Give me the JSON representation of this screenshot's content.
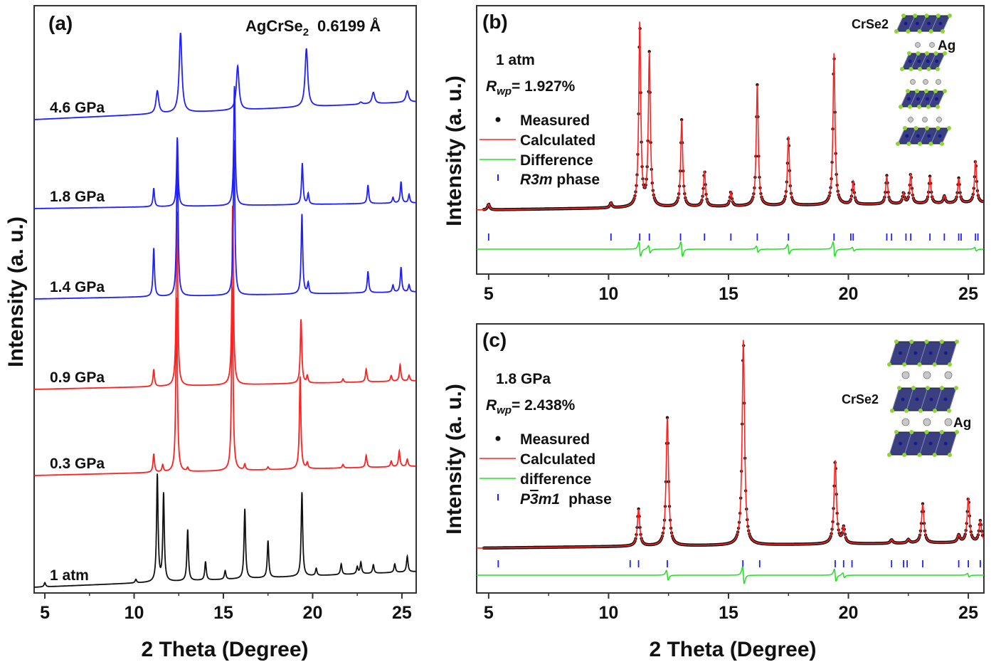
{
  "colors": {
    "blue": "#1f1fff",
    "red": "#ff2020",
    "green": "#20e020",
    "black": "#111111",
    "layer": "#3a3f80",
    "se": "#8fd430",
    "ag": "#c8c8c8"
  },
  "panel_a": {
    "tag": "(a)",
    "title_formula": "AgCrSe",
    "title_sub": "2",
    "title_wavelength": "0.6199 Å",
    "xlabel": "2 Theta (Degree)",
    "ylabel": "Intensity (a. u.)"
  },
  "panel_b": {
    "tag": "(b)",
    "condition": "1 atm",
    "rwp_r": "R",
    "rwp_sub": "wp",
    "rwp_value": "= 1.927%",
    "legend": {
      "measured": "Measured",
      "calculated": "Calculated",
      "difference": "Difference",
      "phase_name": "R3m",
      "phase_suffix": " phase"
    },
    "inset": {
      "crse2": "CrSe2",
      "ag": "Ag"
    },
    "xlabel": "",
    "ylabel": "Intensity (a. u.)"
  },
  "panel_c": {
    "tag": "(c)",
    "condition": "1.8 GPa",
    "rwp_r": "R",
    "rwp_sub": "wp",
    "rwp_value": "= 2.438%",
    "legend": {
      "measured": "Measured",
      "calculated": "Calculated",
      "difference": "difference",
      "phase_p": "P",
      "phase_bar": "3",
      "phase_m1": "m1",
      "phase_suffix": "phase"
    },
    "inset": {
      "crse2": "CrSe2",
      "ag": "Ag"
    },
    "xlabel": "2 Theta (Degree)",
    "ylabel": "Intensity (a. u.)"
  },
  "chart_data": [
    {
      "panel": "a",
      "type": "line",
      "title": "AgCrSe2 0.6199 Å",
      "xlabel": "2 Theta (Degree)",
      "ylabel": "Intensity (a. u.)",
      "xlim": [
        4.4,
        25.8
      ],
      "ylim": [
        0,
        825
      ],
      "xticks": [
        5,
        10,
        15,
        20,
        25
      ],
      "grid": false,
      "patterns": [
        {
          "label": "1 atm",
          "color": "black",
          "baseline": [
            8,
            30
          ],
          "width": 0.05,
          "peaks": [
            [
              5.0,
              6
            ],
            [
              10.1,
              5
            ],
            [
              11.3,
              150
            ],
            [
              11.65,
              123
            ],
            [
              13.0,
              72
            ],
            [
              14.0,
              26
            ],
            [
              15.1,
              12
            ],
            [
              16.2,
              98
            ],
            [
              17.5,
              52
            ],
            [
              19.4,
              118
            ],
            [
              20.2,
              10
            ],
            [
              21.6,
              15
            ],
            [
              22.5,
              10
            ],
            [
              22.7,
              16
            ],
            [
              23.4,
              12
            ],
            [
              24.6,
              12
            ],
            [
              25.3,
              22
            ]
          ]
        },
        {
          "label": "0.3 GPa",
          "color": "red",
          "baseline": [
            165,
            178
          ],
          "width": 0.05,
          "peaks": [
            [
              11.1,
              26
            ],
            [
              11.6,
              10
            ],
            [
              12.38,
              245
            ],
            [
              13.0,
              5
            ],
            [
              15.5,
              258
            ],
            [
              16.2,
              8
            ],
            [
              17.5,
              4
            ],
            [
              19.3,
              130
            ],
            [
              19.7,
              8
            ],
            [
              21.7,
              5
            ],
            [
              23.0,
              17
            ],
            [
              24.4,
              8
            ],
            [
              24.85,
              22
            ],
            [
              25.3,
              10
            ]
          ]
        },
        {
          "label": "0.9 GPa",
          "color": "red",
          "baseline": [
            286,
            298
          ],
          "width": 0.05,
          "peaks": [
            [
              11.1,
              24
            ],
            [
              12.4,
              245
            ],
            [
              15.52,
              252
            ],
            [
              19.35,
              90
            ],
            [
              19.7,
              10
            ],
            [
              21.7,
              5
            ],
            [
              23.0,
              18
            ],
            [
              24.4,
              8
            ],
            [
              24.9,
              23
            ],
            [
              25.4,
              8
            ]
          ]
        },
        {
          "label": "1.4 GPa",
          "color": "blue",
          "baseline": [
            413,
            423
          ],
          "width": 0.05,
          "peaks": [
            [
              11.1,
              68
            ],
            [
              12.42,
              208
            ],
            [
              15.6,
              218
            ],
            [
              19.4,
              112
            ],
            [
              19.75,
              15
            ],
            [
              23.1,
              30
            ],
            [
              24.5,
              10
            ],
            [
              24.95,
              35
            ],
            [
              25.4,
              10
            ]
          ]
        },
        {
          "label": "1.8 GPa",
          "color": "blue",
          "baseline": [
            540,
            548
          ],
          "width": 0.05,
          "peaks": [
            [
              11.1,
              26
            ],
            [
              12.42,
              97
            ],
            [
              15.62,
              168
            ],
            [
              19.42,
              58
            ],
            [
              19.75,
              15
            ],
            [
              23.1,
              26
            ],
            [
              24.5,
              8
            ],
            [
              24.95,
              30
            ],
            [
              25.4,
              12
            ]
          ]
        },
        {
          "label": "4.6 GPa",
          "color": "blue",
          "baseline": [
            665,
            690
          ],
          "width": 0.09,
          "peaks": [
            [
              11.3,
              32
            ],
            [
              12.6,
              112
            ],
            [
              15.8,
              62
            ],
            [
              19.65,
              82
            ],
            [
              22.7,
              3
            ],
            [
              23.4,
              16
            ],
            [
              25.3,
              16
            ]
          ]
        }
      ]
    },
    {
      "panel": "b",
      "type": "line",
      "xlabel": "",
      "ylabel": "Intensity (a. u.)",
      "xlim": [
        4.5,
        25.65
      ],
      "ylim": [
        0,
        377
      ],
      "xticks": [
        5,
        10,
        15,
        20,
        25
      ],
      "legend": [
        "Measured",
        "Calculated",
        "Difference",
        "R3m phase"
      ],
      "legend_placement": "top-left",
      "profile": {
        "baseline": [
          90,
          100
        ],
        "width": 0.05,
        "peaks": [
          [
            5.0,
            8
          ],
          [
            10.1,
            7
          ],
          [
            11.3,
            258
          ],
          [
            11.7,
            215
          ],
          [
            13.05,
            122
          ],
          [
            14.0,
            50
          ],
          [
            15.1,
            20
          ],
          [
            16.2,
            170
          ],
          [
            17.5,
            97
          ],
          [
            19.4,
            213
          ],
          [
            20.2,
            32
          ],
          [
            21.6,
            40
          ],
          [
            22.3,
            15
          ],
          [
            22.6,
            42
          ],
          [
            23.4,
            38
          ],
          [
            24.0,
            10
          ],
          [
            24.6,
            35
          ],
          [
            25.3,
            60
          ]
        ]
      },
      "bragg_ticks": [
        5.0,
        10.1,
        11.3,
        11.7,
        13.0,
        14.0,
        15.1,
        16.2,
        17.5,
        19.4,
        20.1,
        20.2,
        21.6,
        21.8,
        22.4,
        22.6,
        23.4,
        24.0,
        24.6,
        24.7,
        25.3,
        25.4
      ],
      "tick_level": 52,
      "difference": {
        "level": 35,
        "features": [
          [
            11.3,
            12
          ],
          [
            11.7,
            6
          ],
          [
            13.05,
            12
          ],
          [
            16.2,
            5
          ],
          [
            17.5,
            8
          ],
          [
            19.4,
            12
          ],
          [
            20.2,
            3
          ],
          [
            25.3,
            3
          ]
        ]
      }
    },
    {
      "panel": "c",
      "type": "line",
      "xlabel": "2 Theta (Degree)",
      "ylabel": "Intensity (a. u.)",
      "xlim": [
        4.5,
        25.65
      ],
      "ylim": [
        0,
        378
      ],
      "xticks": [
        5,
        10,
        15,
        20,
        25
      ],
      "legend": [
        "Measured",
        "Calculated",
        "difference",
        "P-3m1 phase"
      ],
      "legend_placement": "top-left",
      "profile": {
        "baseline": [
          63,
          71
        ],
        "width": 0.06,
        "peaks": [
          [
            11.25,
            52
          ],
          [
            12.45,
            180
          ],
          [
            15.62,
            288
          ],
          [
            19.45,
            117
          ],
          [
            19.8,
            22
          ],
          [
            21.8,
            5
          ],
          [
            22.5,
            5
          ],
          [
            23.1,
            55
          ],
          [
            24.6,
            10
          ],
          [
            25.0,
            62
          ],
          [
            25.5,
            30
          ]
        ]
      },
      "bragg_ticks": [
        5.4,
        10.9,
        11.25,
        12.45,
        15.6,
        16.3,
        19.45,
        19.8,
        20.15,
        21.8,
        22.3,
        22.45,
        23.1,
        24.6,
        25.0,
        25.5
      ],
      "tick_level": 41,
      "difference": {
        "level": 25,
        "features": [
          [
            12.45,
            8
          ],
          [
            15.62,
            14
          ],
          [
            19.45,
            10
          ],
          [
            19.8,
            4
          ],
          [
            25.0,
            3
          ]
        ]
      }
    }
  ]
}
